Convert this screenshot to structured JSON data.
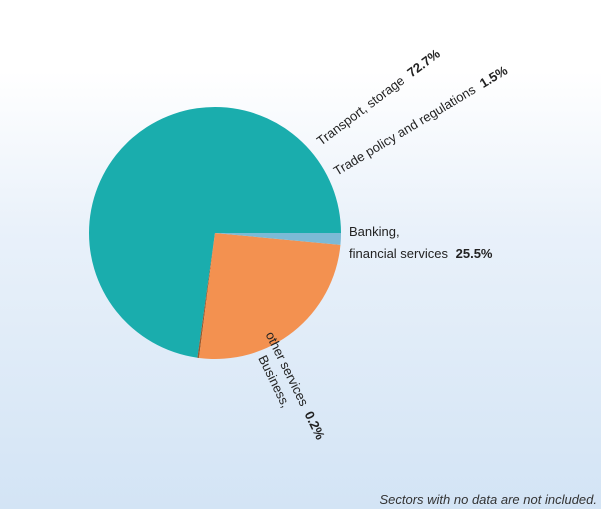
{
  "chart_data": {
    "type": "pie",
    "title": "",
    "start_angle_deg": 0,
    "direction": "counterclockwise",
    "slices": [
      {
        "label": "Transport, storage",
        "value": 72.7,
        "display": "72.7%",
        "color": "#1aadad"
      },
      {
        "label": "Business, other services",
        "value": 0.2,
        "display": "0.2%",
        "color": "#9a5a2e"
      },
      {
        "label": "Banking, financial services",
        "value": 25.5,
        "display": "25.5%",
        "color": "#f39150"
      },
      {
        "label": "Trade policy and regulations",
        "value": 1.5,
        "display": "1.5%",
        "color": "#7cbad6"
      }
    ],
    "labels": {
      "transport_text": "Transport, storage",
      "transport_value": "72.7%",
      "trade_text": "Trade policy and regulations",
      "trade_value": "1.5%",
      "banking_line1": "Banking,",
      "banking_line2": "financial services",
      "banking_value": "25.5%",
      "business_line1": "Business,",
      "business_line2": "other services",
      "business_value": "0.2%"
    }
  },
  "footnote": "Sectors with no data are not included."
}
